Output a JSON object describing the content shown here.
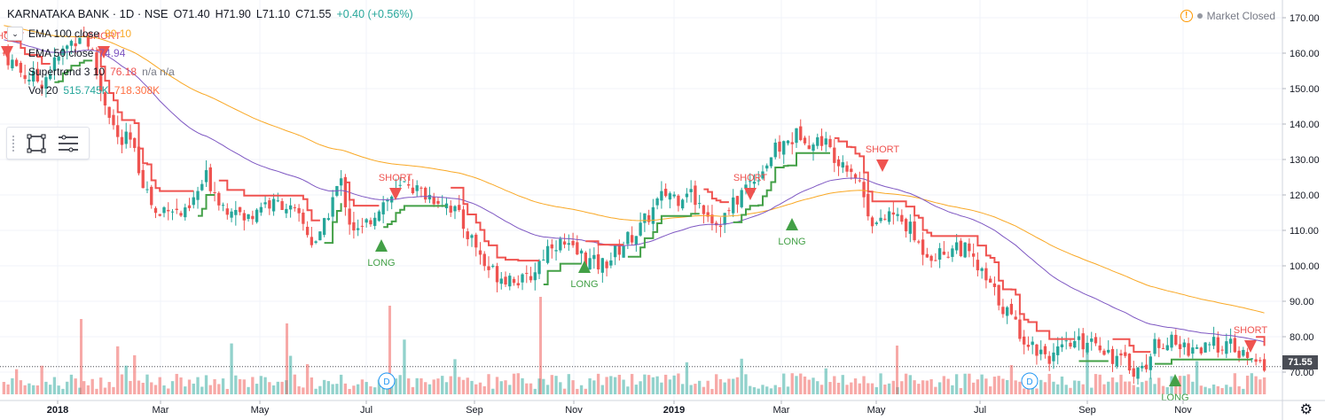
{
  "symbol": {
    "name": "KARNATAKA BANK · 1D · NSE",
    "open": "O71.40",
    "high": "H71.90",
    "low": "L71.10",
    "close": "C71.55",
    "change": "+0.40 (+0.56%)"
  },
  "indicators": [
    {
      "label": "EMA 100 close",
      "value": "80.10",
      "value2": "",
      "color": "#f9a825"
    },
    {
      "label": "EMA 50 close",
      "value": "74.94",
      "value2": "",
      "color": "#7e57c2"
    },
    {
      "label": "Supertrend 3 10",
      "value": "76.18",
      "value2": "n/a  n/a",
      "color": "#ef5350"
    },
    {
      "label": "Vol 20",
      "value": "515.745K",
      "value2": "718.308K",
      "color": "#26a69a",
      "color2": "#ff7043"
    }
  ],
  "market_status": "Market Closed",
  "last_price_tag": "71.55",
  "icons": {
    "chevron": "chevron-down-icon",
    "rectangle_tool": "rectangle-icon",
    "menu_tool": "menu-lines-icon",
    "warning": "warning-icon",
    "settings": "gear-icon"
  },
  "chart_data": {
    "type": "candlestick",
    "title": "KARNATAKA BANK · 1D · NSE",
    "ylim": [
      68,
      172
    ],
    "y_ticks": [
      "170.00",
      "160.00",
      "150.00",
      "140.00",
      "130.00",
      "120.00",
      "110.00",
      "100.00",
      "90.00",
      "80.00",
      "70.00"
    ],
    "x_ticks": [
      "2018",
      "Mar",
      "May",
      "Jul",
      "Sep",
      "Nov",
      "2019",
      "Mar",
      "May",
      "Jul",
      "Sep",
      "Nov"
    ],
    "price_path": [
      [
        0,
        160
      ],
      [
        2,
        154
      ],
      [
        4,
        152
      ],
      [
        6,
        160
      ],
      [
        8,
        166
      ],
      [
        9,
        162
      ],
      [
        10,
        150
      ],
      [
        11,
        143
      ],
      [
        12,
        134
      ],
      [
        13,
        136
      ],
      [
        14,
        128
      ],
      [
        15,
        120
      ],
      [
        16,
        113
      ],
      [
        17,
        118
      ],
      [
        18,
        115
      ],
      [
        19,
        114
      ],
      [
        20,
        120
      ],
      [
        21,
        125
      ],
      [
        22,
        121
      ],
      [
        23,
        116
      ],
      [
        24,
        118
      ],
      [
        25,
        112
      ],
      [
        26,
        116
      ],
      [
        27,
        118
      ],
      [
        28,
        117
      ],
      [
        29,
        118
      ],
      [
        30,
        115
      ],
      [
        31,
        112
      ],
      [
        32,
        107
      ],
      [
        33,
        108
      ],
      [
        34,
        118
      ],
      [
        35,
        124
      ],
      [
        36,
        112
      ],
      [
        37,
        109
      ],
      [
        38,
        113
      ],
      [
        39,
        117
      ],
      [
        40,
        119
      ],
      [
        41,
        121
      ],
      [
        42,
        124
      ],
      [
        43,
        121
      ],
      [
        44,
        120
      ],
      [
        45,
        119
      ],
      [
        46,
        118
      ],
      [
        47,
        115
      ],
      [
        48,
        110
      ],
      [
        49,
        106
      ],
      [
        50,
        100
      ],
      [
        51,
        98
      ],
      [
        52,
        97
      ],
      [
        53,
        97
      ],
      [
        54,
        95
      ],
      [
        55,
        98
      ],
      [
        56,
        103
      ],
      [
        57,
        107
      ],
      [
        58,
        106
      ],
      [
        59,
        104
      ],
      [
        60,
        103
      ],
      [
        61,
        101
      ],
      [
        62,
        100
      ],
      [
        63,
        102
      ],
      [
        64,
        105
      ],
      [
        65,
        108
      ],
      [
        66,
        110
      ],
      [
        67,
        114
      ],
      [
        68,
        118
      ],
      [
        69,
        121
      ],
      [
        70,
        119
      ],
      [
        71,
        122
      ],
      [
        72,
        118
      ],
      [
        73,
        116
      ],
      [
        74,
        112
      ],
      [
        75,
        114
      ],
      [
        76,
        118
      ],
      [
        77,
        122
      ],
      [
        78,
        125
      ],
      [
        79,
        128
      ],
      [
        80,
        132
      ],
      [
        81,
        134
      ],
      [
        82,
        136
      ],
      [
        83,
        138
      ],
      [
        84,
        134
      ],
      [
        85,
        136
      ],
      [
        86,
        132
      ],
      [
        87,
        130
      ],
      [
        88,
        128
      ],
      [
        89,
        123
      ],
      [
        90,
        114
      ],
      [
        91,
        111
      ],
      [
        92,
        115
      ],
      [
        93,
        113
      ],
      [
        94,
        111
      ],
      [
        95,
        106
      ],
      [
        96,
        104
      ],
      [
        97,
        103
      ],
      [
        98,
        104
      ],
      [
        99,
        106
      ],
      [
        100,
        104
      ],
      [
        101,
        100
      ],
      [
        102,
        96
      ],
      [
        103,
        92
      ],
      [
        104,
        88
      ],
      [
        105,
        84
      ],
      [
        106,
        80
      ],
      [
        107,
        77
      ],
      [
        108,
        76
      ],
      [
        109,
        74
      ],
      [
        110,
        76
      ],
      [
        111,
        78
      ],
      [
        112,
        78
      ],
      [
        113,
        80
      ],
      [
        114,
        78
      ],
      [
        115,
        75
      ],
      [
        116,
        73
      ],
      [
        117,
        72
      ],
      [
        118,
        70
      ],
      [
        119,
        74
      ],
      [
        120,
        79
      ],
      [
        121,
        79
      ],
      [
        122,
        77
      ],
      [
        123,
        77
      ],
      [
        124,
        77
      ],
      [
        125,
        76
      ],
      [
        126,
        78
      ],
      [
        127,
        78
      ],
      [
        128,
        76
      ],
      [
        129,
        74
      ],
      [
        130,
        72
      ],
      [
        131,
        72
      ]
    ],
    "series": [
      {
        "name": "EMA 100 close",
        "color": "#f9a825"
      },
      {
        "name": "EMA 50 close",
        "color": "#7e57c2"
      },
      {
        "name": "Supertrend 3 10",
        "color": "#ef5350"
      },
      {
        "name": "Supertrend 3 10",
        "color": "#43a047"
      }
    ],
    "signals": [
      {
        "label": "SHORT",
        "kind": "short",
        "at": 1,
        "level": 160
      },
      {
        "label": "SHORT",
        "kind": "short",
        "at": 12,
        "level": 160
      },
      {
        "label": "SHORT",
        "kind": "short",
        "at": 46,
        "level": 120
      },
      {
        "label": "LONG",
        "kind": "long",
        "at": 44,
        "level": 106
      },
      {
        "label": "SHORT",
        "kind": "short",
        "at": 89,
        "level": 120
      },
      {
        "label": "LONG",
        "kind": "long",
        "at": 69,
        "level": 100
      },
      {
        "label": "LONG",
        "kind": "long",
        "at": 95,
        "level": 112
      },
      {
        "label": "SHORT",
        "kind": "short",
        "at": 104,
        "level": 128
      },
      {
        "label": "LONG",
        "kind": "long",
        "at": 139,
        "level": 68
      },
      {
        "label": "SHORT",
        "kind": "short",
        "at": 148,
        "level": 77
      }
    ],
    "dividend_markers": [
      {
        "label": "D",
        "at": 45
      },
      {
        "label": "D",
        "at": 121
      }
    ]
  }
}
